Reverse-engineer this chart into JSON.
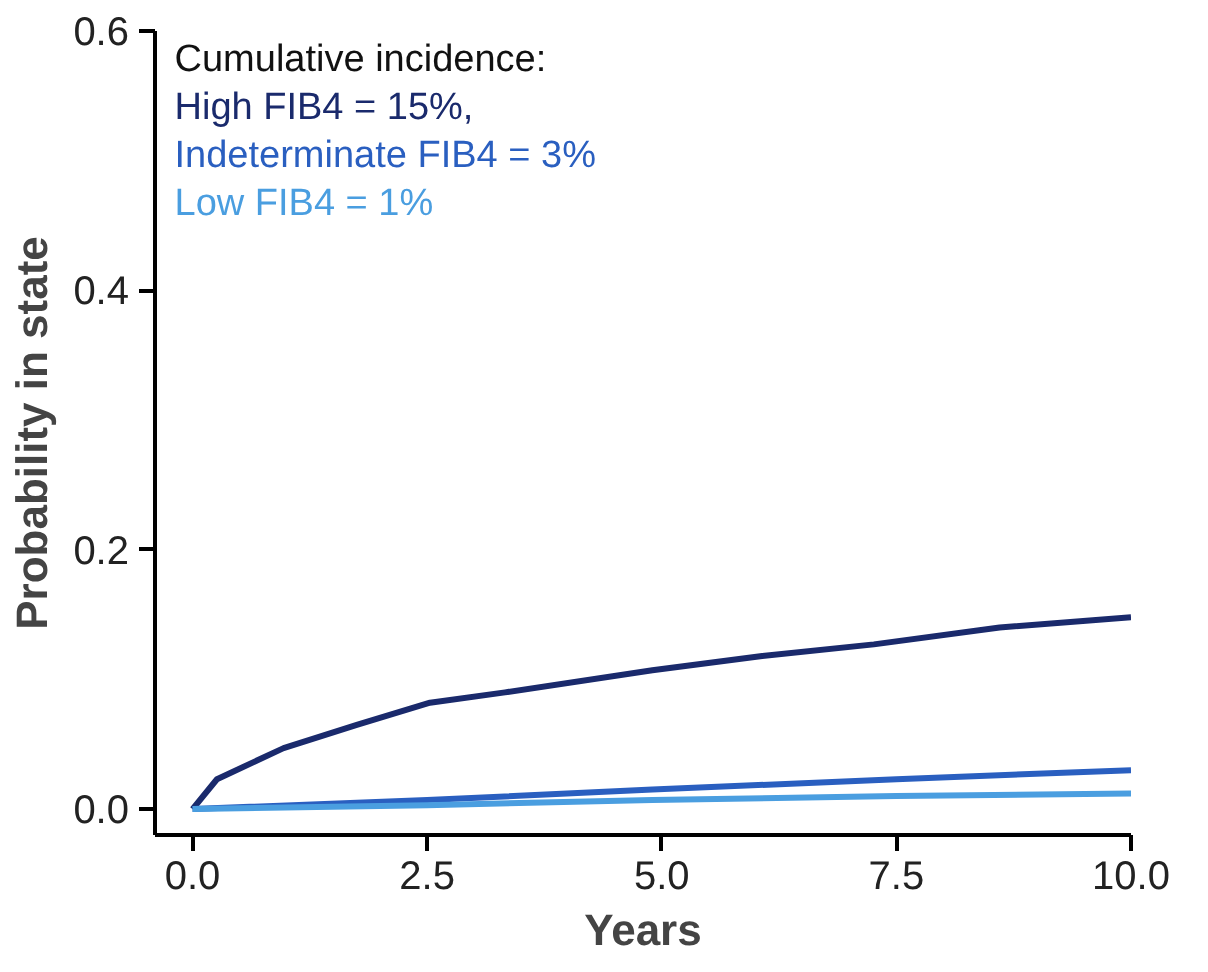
{
  "chart_data": {
    "type": "line",
    "xlabel": "Years",
    "ylabel": "Probability in state",
    "legend_title": "Cumulative incidence:",
    "legend": "top left",
    "grid": false,
    "xlim": [
      -0.4,
      10
    ],
    "ylim": [
      -0.02,
      0.6
    ],
    "xticks": [
      {
        "value": 0,
        "label": "0.0"
      },
      2.5,
      {
        "value": 5,
        "label": "5.0"
      },
      7.5,
      {
        "value": 10,
        "label": "10.0"
      }
    ],
    "yticks": [
      {
        "value": 0,
        "label": "0.0"
      },
      0.2,
      0.4,
      0.6
    ],
    "series": [
      {
        "name": "High FIB4 = 15%,",
        "color": "#1a2a6c",
        "x": [
          0,
          0.26,
          0.97,
          1.75,
          2.53,
          3.33,
          4.9,
          6.07,
          7.26,
          8.6,
          10
        ],
        "values": [
          0,
          0.023,
          0.047,
          0.065,
          0.082,
          0.09,
          0.107,
          0.118,
          0.127,
          0.14,
          0.148
        ]
      },
      {
        "name": "Indeterminate FIB4 = 3%",
        "color": "#2a5fc0",
        "x": [
          0,
          2.5,
          4.9,
          7.5,
          10
        ],
        "values": [
          0,
          0.007,
          0.015,
          0.023,
          0.03
        ]
      },
      {
        "name": "Low FIB4 = 1%",
        "color": "#4a9ee0",
        "x": [
          0,
          2.5,
          4.9,
          7.5,
          10
        ],
        "values": [
          0,
          0.003,
          0.007,
          0.01,
          0.012
        ]
      }
    ]
  }
}
